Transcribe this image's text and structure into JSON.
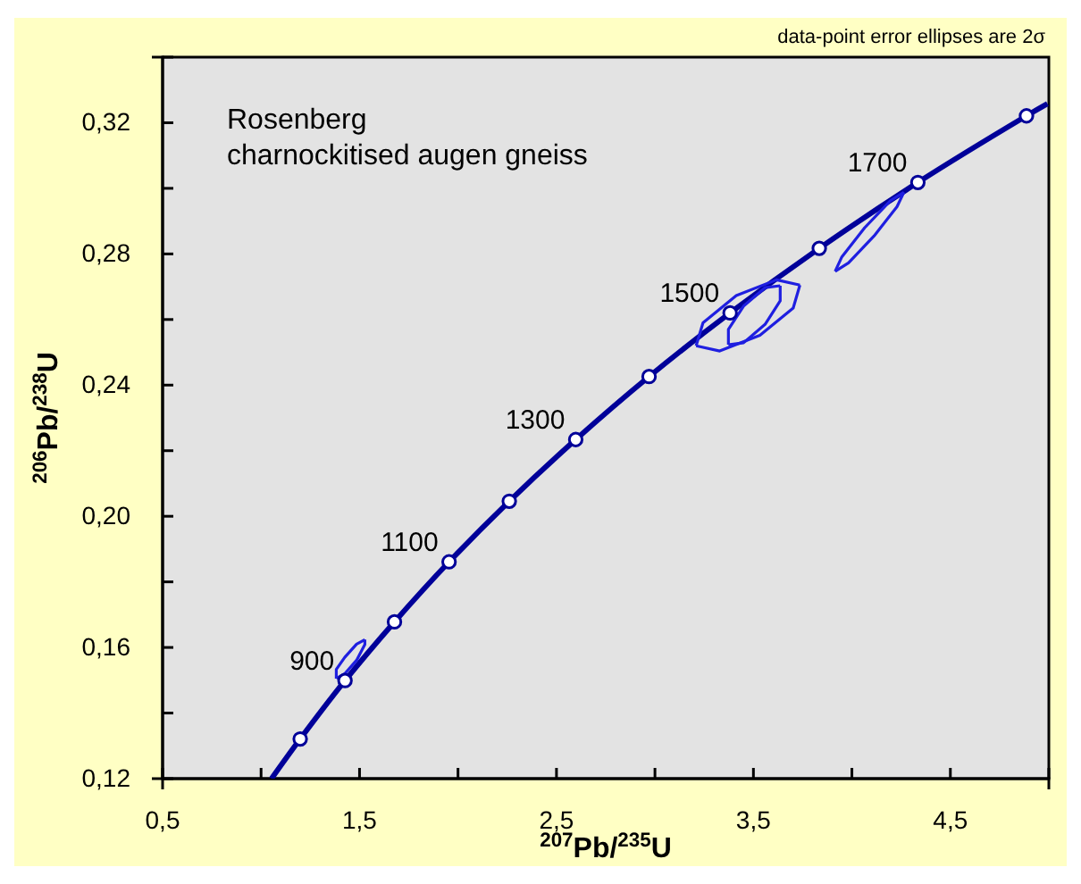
{
  "chart_data": {
    "type": "line",
    "xlabel": "$^{207}$Pb/$^{235}$U",
    "ylabel": "$^{206}$Pb/$^{238}$U",
    "annotations": [
      "data-point error ellipses are 2σ",
      "Rosenberg",
      "charnockitised augen gneiss",
      {
        "text": "900",
        "x": 1.4263,
        "y": 0.1499
      },
      {
        "text": "1100",
        "x": 1.9546,
        "y": 0.1861
      },
      {
        "text": "1300",
        "x": 2.5977,
        "y": 0.2234
      },
      {
        "text": "1500",
        "x": 3.3815,
        "y": 0.262
      },
      {
        "text": "1700",
        "x": 4.335,
        "y": 0.3018
      }
    ],
    "xlim": [
      0.5,
      5.0
    ],
    "ylim": [
      0.12,
      0.34
    ],
    "xticks": [
      {
        "value": 0.5,
        "label": "0,5"
      },
      {
        "value": 1.0,
        "label": null
      },
      {
        "value": 1.5,
        "label": "1,5"
      },
      {
        "value": 2.0,
        "label": null
      },
      {
        "value": 2.5,
        "label": "2,5"
      },
      {
        "value": 3.0,
        "label": null
      },
      {
        "value": 3.5,
        "label": "3,5"
      },
      {
        "value": 4.0,
        "label": null
      },
      {
        "value": 4.5,
        "label": "4,5"
      },
      {
        "value": 5.0,
        "label": null
      }
    ],
    "yticks": [
      {
        "value": 0.12,
        "label": "0,12"
      },
      {
        "value": 0.14,
        "label": null
      },
      {
        "value": 0.16,
        "label": "0,16"
      },
      {
        "value": 0.18,
        "label": null
      },
      {
        "value": 0.2,
        "label": "0,20"
      },
      {
        "value": 0.22,
        "label": null
      },
      {
        "value": 0.24,
        "label": "0,24"
      },
      {
        "value": 0.26,
        "label": null
      },
      {
        "value": 0.28,
        "label": "0,28"
      },
      {
        "value": 0.3,
        "label": null
      },
      {
        "value": 0.32,
        "label": "0,32"
      },
      {
        "value": 0.34,
        "label": null
      }
    ],
    "grid": false,
    "line_style": "solid",
    "series": [
      {
        "marker": "none",
        "color": "#000099",
        "x": [
          1.053,
          1.1987,
          1.4263,
          1.6774,
          1.9546,
          2.2604,
          2.5977,
          2.9701,
          3.3815,
          3.8344,
          4.335,
          4.8865,
          4.993
        ],
        "values": [
          0.12,
          0.1321,
          0.1499,
          0.1678,
          0.1861,
          0.2046,
          0.2234,
          0.2426,
          0.262,
          0.2817,
          0.3018,
          0.3221,
          0.3258
        ]
      },
      {
        "type": "scatter",
        "marker": "circle",
        "color": "#000099",
        "x": [
          1.1987,
          1.4263,
          1.6774,
          1.9546,
          2.2604,
          2.5977,
          2.9701,
          3.3815,
          3.8344,
          4.335,
          4.8865
        ],
        "values": [
          0.1321,
          0.1499,
          0.1678,
          0.1861,
          0.2046,
          0.2234,
          0.2426,
          0.262,
          0.2817,
          0.3018,
          0.3221
        ]
      },
      {
        "marker": "none",
        "color": "#1f1fe0",
        "x": [
          1.382,
          1.425,
          1.485,
          1.527,
          1.527
        ],
        "values": [
          0.1505,
          0.152,
          0.1561,
          0.1609,
          0.1624
        ]
      },
      {
        "marker": "none",
        "color": "#1f1fe0",
        "x": [
          1.382,
          1.382,
          1.425,
          1.485,
          1.527
        ],
        "values": [
          0.1505,
          0.1533,
          0.157,
          0.161,
          0.1624
        ]
      },
      {
        "marker": "none",
        "color": "#1f1fe0",
        "x": [
          3.209,
          3.329,
          3.533,
          3.702,
          3.736
        ],
        "values": [
          0.252,
          0.2504,
          0.2552,
          0.2635,
          0.2705
        ]
      },
      {
        "marker": "none",
        "color": "#1f1fe0",
        "x": [
          3.209,
          3.244,
          3.413,
          3.617,
          3.736
        ],
        "values": [
          0.252,
          0.259,
          0.2673,
          0.2721,
          0.2705
        ]
      },
      {
        "marker": "none",
        "color": "#1f1fe0",
        "x": [
          3.373,
          3.45,
          3.559,
          3.636,
          3.636
        ],
        "values": [
          0.2523,
          0.2529,
          0.2585,
          0.2657,
          0.2703
        ]
      },
      {
        "marker": "none",
        "color": "#1f1fe0",
        "x": [
          3.373,
          3.373,
          3.45,
          3.559,
          3.636
        ],
        "values": [
          0.2523,
          0.257,
          0.2641,
          0.2697,
          0.2703
        ]
      },
      {
        "marker": "none",
        "color": "#1f1fe0",
        "x": [
          3.915,
          3.983,
          4.113,
          4.229,
          4.264
        ],
        "values": [
          0.2747,
          0.2773,
          0.2855,
          0.2944,
          0.2988
        ]
      },
      {
        "marker": "none",
        "color": "#1f1fe0",
        "x": [
          3.915,
          3.949,
          4.065,
          4.195,
          4.264
        ],
        "values": [
          0.2747,
          0.2791,
          0.288,
          0.2962,
          0.2988
        ]
      }
    ]
  }
}
